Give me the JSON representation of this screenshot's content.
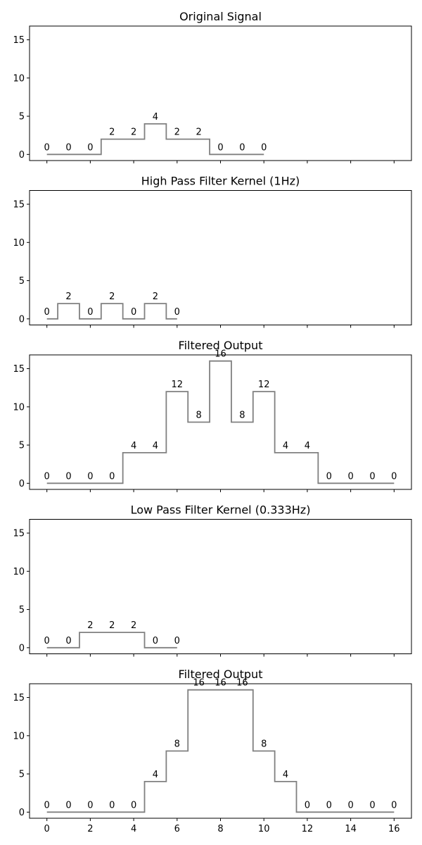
{
  "chart_data": [
    {
      "type": "line",
      "drawstyle": "steps-mid",
      "title": "Original Signal",
      "x": [
        0,
        1,
        2,
        3,
        4,
        5,
        6,
        7,
        8,
        9,
        10
      ],
      "values": [
        0,
        0,
        0,
        2,
        2,
        4,
        2,
        2,
        0,
        0,
        0
      ],
      "data_labels": [
        "0",
        "0",
        "0",
        "2",
        "2",
        "4",
        "2",
        "2",
        "0",
        "0",
        "0"
      ],
      "ylim": [
        -0.8,
        16.8
      ],
      "xlim": [
        -0.8,
        16.8
      ],
      "yticks": [
        0,
        5,
        10,
        15
      ],
      "xticks": [
        0,
        2,
        4,
        6,
        8,
        10,
        12,
        14,
        16
      ],
      "show_xtick_labels": false,
      "line_color": "#808080"
    },
    {
      "type": "line",
      "drawstyle": "steps-mid",
      "title": "High Pass Filter Kernel (1Hz)",
      "x": [
        0,
        1,
        2,
        3,
        4,
        5,
        6
      ],
      "values": [
        0,
        2,
        0,
        2,
        0,
        2,
        0
      ],
      "data_labels": [
        "0",
        "2",
        "0",
        "2",
        "0",
        "2",
        "0"
      ],
      "ylim": [
        -0.8,
        16.8
      ],
      "xlim": [
        -0.8,
        16.8
      ],
      "yticks": [
        0,
        5,
        10,
        15
      ],
      "xticks": [
        0,
        2,
        4,
        6,
        8,
        10,
        12,
        14,
        16
      ],
      "show_xtick_labels": false,
      "line_color": "#808080"
    },
    {
      "type": "line",
      "drawstyle": "steps-mid",
      "title": "Filtered Output",
      "x": [
        0,
        1,
        2,
        3,
        4,
        5,
        6,
        7,
        8,
        9,
        10,
        11,
        12,
        13,
        14,
        15,
        16
      ],
      "values": [
        0,
        0,
        0,
        0,
        4,
        4,
        12,
        8,
        16,
        8,
        12,
        4,
        4,
        0,
        0,
        0,
        0
      ],
      "data_labels": [
        "0",
        "0",
        "0",
        "0",
        "4",
        "4",
        "12",
        "8",
        "16",
        "8",
        "12",
        "4",
        "4",
        "0",
        "0",
        "0",
        "0"
      ],
      "ylim": [
        -0.8,
        16.8
      ],
      "xlim": [
        -0.8,
        16.8
      ],
      "yticks": [
        0,
        5,
        10,
        15
      ],
      "xticks": [
        0,
        2,
        4,
        6,
        8,
        10,
        12,
        14,
        16
      ],
      "show_xtick_labels": false,
      "line_color": "#808080"
    },
    {
      "type": "line",
      "drawstyle": "steps-mid",
      "title": "Low Pass Filter Kernel (0.333Hz)",
      "x": [
        0,
        1,
        2,
        3,
        4,
        5,
        6
      ],
      "values": [
        0,
        0,
        2,
        2,
        2,
        0,
        0
      ],
      "data_labels": [
        "0",
        "0",
        "2",
        "2",
        "2",
        "0",
        "0"
      ],
      "ylim": [
        -0.8,
        16.8
      ],
      "xlim": [
        -0.8,
        16.8
      ],
      "yticks": [
        0,
        5,
        10,
        15
      ],
      "xticks": [
        0,
        2,
        4,
        6,
        8,
        10,
        12,
        14,
        16
      ],
      "show_xtick_labels": false,
      "line_color": "#808080"
    },
    {
      "type": "line",
      "drawstyle": "steps-mid",
      "title": "Filtered Output",
      "x": [
        0,
        1,
        2,
        3,
        4,
        5,
        6,
        7,
        8,
        9,
        10,
        11,
        12,
        13,
        14,
        15,
        16
      ],
      "values": [
        0,
        0,
        0,
        0,
        0,
        4,
        8,
        16,
        16,
        16,
        8,
        4,
        0,
        0,
        0,
        0,
        0
      ],
      "data_labels": [
        "0",
        "0",
        "0",
        "0",
        "0",
        "4",
        "8",
        "16",
        "16",
        "16",
        "8",
        "4",
        "0",
        "0",
        "0",
        "0",
        "0"
      ],
      "ylim": [
        -0.8,
        16.8
      ],
      "xlim": [
        -0.8,
        16.8
      ],
      "yticks": [
        0,
        5,
        10,
        15
      ],
      "xticks": [
        0,
        2,
        4,
        6,
        8,
        10,
        12,
        14,
        16
      ],
      "show_xtick_labels": true,
      "line_color": "#808080"
    }
  ]
}
